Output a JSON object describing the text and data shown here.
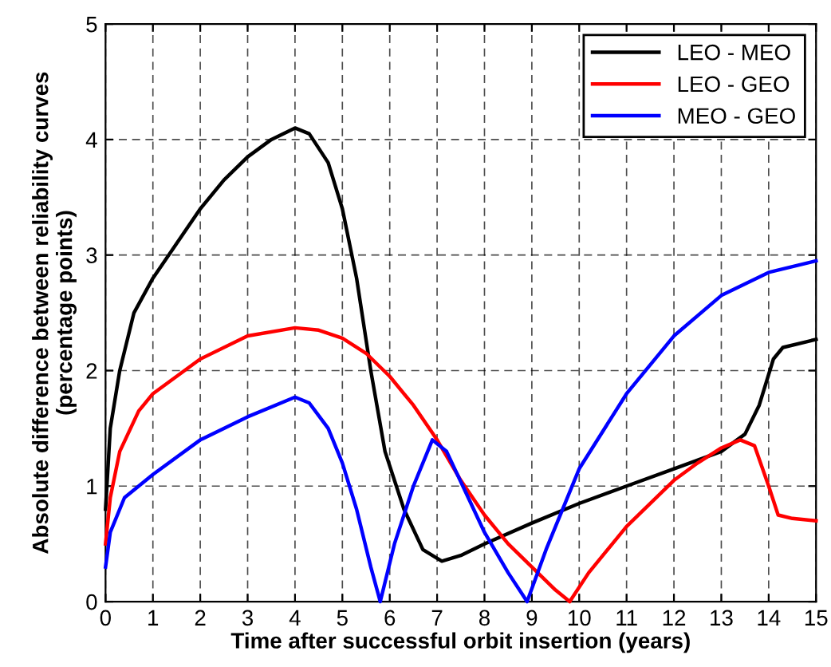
{
  "chart_data": {
    "type": "line",
    "xlabel": "Time after successful orbit insertion (years)",
    "ylabel": "Absolute difference between reliability curves\n(percentage points)",
    "xlim": [
      0,
      15
    ],
    "ylim": [
      0,
      5
    ],
    "xticks": [
      0,
      1,
      2,
      3,
      4,
      5,
      6,
      7,
      8,
      9,
      10,
      11,
      12,
      13,
      14,
      15
    ],
    "yticks": [
      0,
      1,
      2,
      3,
      4,
      5
    ],
    "grid": true,
    "legend": "top right",
    "line_style": "solid",
    "marker": "none",
    "series": [
      {
        "name": "LEO - MEO",
        "color": "#000000",
        "x": [
          0,
          0.1,
          0.3,
          0.6,
          1,
          1.5,
          2,
          2.5,
          3,
          3.5,
          4,
          4.3,
          4.7,
          5,
          5.3,
          5.6,
          5.9,
          6.3,
          6.7,
          7.1,
          7.5,
          8,
          9,
          10,
          11,
          12,
          13,
          13.5,
          13.8,
          14.1,
          14.3,
          15
        ],
        "values": [
          0.8,
          1.5,
          2.0,
          2.5,
          2.8,
          3.1,
          3.4,
          3.65,
          3.85,
          4.0,
          4.1,
          4.05,
          3.8,
          3.4,
          2.8,
          2.0,
          1.3,
          0.8,
          0.45,
          0.35,
          0.4,
          0.5,
          0.68,
          0.85,
          1.0,
          1.15,
          1.3,
          1.45,
          1.7,
          2.1,
          2.2,
          2.27
        ]
      },
      {
        "name": "LEO - GEO",
        "color": "#ff0000",
        "x": [
          0,
          0.1,
          0.3,
          0.7,
          1,
          2,
          3,
          4,
          4.5,
          5,
          5.5,
          6,
          6.5,
          7,
          7.5,
          8,
          8.5,
          9,
          9.5,
          9.8,
          10.2,
          11,
          12,
          12.5,
          13,
          13.4,
          13.7,
          14,
          14.2,
          14.5,
          15
        ],
        "values": [
          0.5,
          0.9,
          1.3,
          1.65,
          1.8,
          2.1,
          2.3,
          2.37,
          2.35,
          2.28,
          2.15,
          1.95,
          1.7,
          1.4,
          1.05,
          0.75,
          0.5,
          0.3,
          0.1,
          0.0,
          0.25,
          0.65,
          1.05,
          1.2,
          1.33,
          1.4,
          1.35,
          1.0,
          0.75,
          0.72,
          0.7
        ]
      },
      {
        "name": "MEO - GEO",
        "color": "#0000ff",
        "x": [
          0,
          0.1,
          0.4,
          1,
          2,
          3,
          4,
          4.3,
          4.7,
          5,
          5.3,
          5.6,
          5.8,
          6.1,
          6.5,
          6.9,
          7.2,
          7.6,
          8,
          8.5,
          8.9,
          9.3,
          10,
          11,
          12,
          13,
          14,
          15
        ],
        "values": [
          0.3,
          0.6,
          0.9,
          1.1,
          1.4,
          1.6,
          1.77,
          1.72,
          1.5,
          1.2,
          0.8,
          0.3,
          0.0,
          0.5,
          1.0,
          1.4,
          1.3,
          0.95,
          0.6,
          0.25,
          0.0,
          0.45,
          1.15,
          1.8,
          2.3,
          2.65,
          2.85,
          2.95
        ]
      }
    ]
  }
}
